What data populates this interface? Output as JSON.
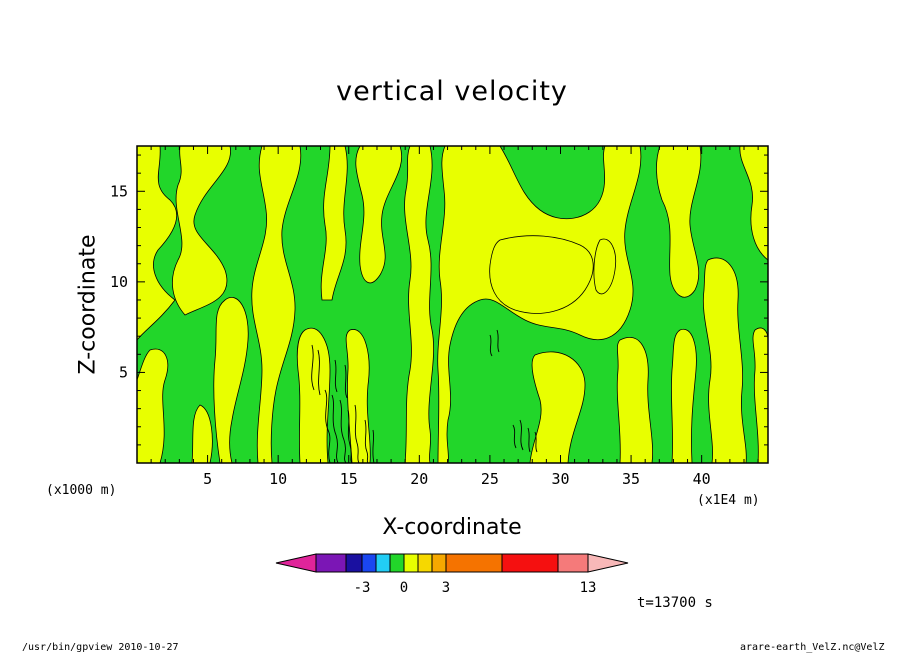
{
  "chart_data": {
    "type": "heatmap",
    "title": "vertical velocity",
    "xlabel": "X-coordinate",
    "ylabel": "Z-coordinate",
    "x_unit": "(x1000 m)",
    "x_unit_right": "(x1E4 m)",
    "x_ticks": [
      5,
      10,
      15,
      20,
      25,
      30,
      35,
      40
    ],
    "y_ticks": [
      5,
      10,
      15
    ],
    "xlim": [
      0,
      44.7
    ],
    "ylim": [
      0,
      17.5
    ],
    "grid": false,
    "colorbar": {
      "colors": [
        "#e0249a",
        "#7b16b5",
        "#1a10a0",
        "#1a46f0",
        "#22cdf5",
        "#22d62a",
        "#e8ff00",
        "#f6d800",
        "#f6a800",
        "#f57300",
        "#f51010",
        "#f57a7a",
        "#f8b8b8"
      ],
      "tick_labels": [
        "-3",
        "0",
        "3",
        "13"
      ]
    },
    "time_label": "t=13700 s",
    "dominant_fill": {
      "negative": "#22d62a",
      "positive": "#e8ff00"
    }
  },
  "footer": {
    "left": "/usr/bin/gpview  2010-10-27",
    "right": "arare-earth_VelZ.nc@VelZ"
  }
}
